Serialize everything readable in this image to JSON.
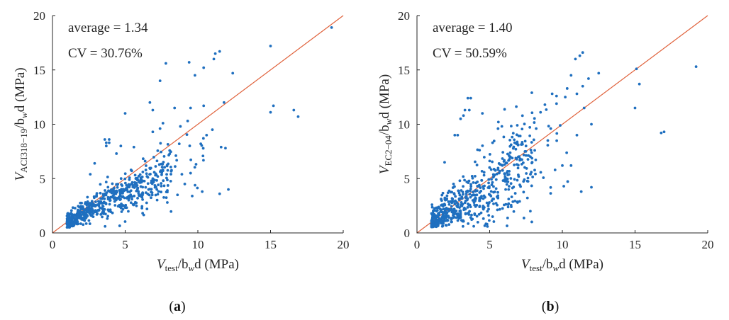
{
  "figure": {
    "caption_open": "(",
    "caption_close": ")"
  },
  "chart_data": [
    {
      "id": "a",
      "type": "scatter",
      "panel_label": "a",
      "title": "",
      "xlabel": "V_test / b_w d (MPa)",
      "ylabel": "V_ACI318–19 / b_w d (MPa)",
      "xlabel_main": "V",
      "xlabel_sub": "test",
      "xlabel_rest": "/b",
      "xlabel_sub2": "w",
      "xlabel_tail": "d (MPa)",
      "ylabel_main": "V",
      "ylabel_sub": "ACI318−19",
      "ylabel_rest": "/b",
      "ylabel_sub2": "w",
      "ylabel_tail": "d (MPa)",
      "xlim": [
        0,
        20
      ],
      "ylim": [
        0,
        20
      ],
      "xticks": [
        0,
        5,
        10,
        15,
        20
      ],
      "yticks": [
        0,
        5,
        10,
        15,
        20
      ],
      "annotations": [
        "average = 1.34",
        "CV = 30.76%"
      ],
      "reference_line": {
        "from": [
          0,
          0
        ],
        "to": [
          20,
          20
        ],
        "color": "#e0623c"
      },
      "point_color": "#1f6fbf",
      "seed": 17,
      "n_cluster": 620,
      "outliers": [
        [
          19.2,
          18.9
        ],
        [
          15.0,
          17.2
        ],
        [
          11.5,
          16.7
        ],
        [
          11.2,
          16.5
        ],
        [
          11.1,
          16.0
        ],
        [
          7.8,
          15.6
        ],
        [
          9.4,
          15.7
        ],
        [
          9.8,
          14.5
        ],
        [
          12.4,
          14.7
        ],
        [
          7.4,
          14.0
        ],
        [
          10.4,
          15.2
        ],
        [
          15.2,
          11.7
        ],
        [
          15.0,
          11.1
        ],
        [
          16.6,
          11.3
        ],
        [
          16.9,
          10.7
        ],
        [
          11.8,
          12.0
        ],
        [
          12.1,
          4.0
        ],
        [
          11.5,
          3.6
        ],
        [
          10.3,
          3.8
        ],
        [
          11.6,
          7.9
        ],
        [
          11.9,
          7.8
        ],
        [
          10.4,
          11.7
        ],
        [
          8.4,
          11.5
        ],
        [
          6.7,
          12.0
        ],
        [
          5.0,
          11.0
        ],
        [
          9.3,
          10.3
        ],
        [
          9.5,
          11.5
        ],
        [
          6.9,
          11.3
        ],
        [
          10.6,
          9.0
        ],
        [
          11.0,
          9.5
        ],
        [
          8.8,
          9.8
        ],
        [
          7.6,
          10.1
        ],
        [
          10.2,
          8.2
        ],
        [
          9.1,
          4.5
        ],
        [
          9.5,
          5.5
        ],
        [
          8.9,
          5.4
        ],
        [
          7.9,
          2.8
        ],
        [
          8.6,
          3.5
        ],
        [
          3.6,
          8.6
        ],
        [
          3.9,
          8.6
        ],
        [
          3.7,
          8.3
        ],
        [
          3.9,
          8.3
        ],
        [
          3.7,
          8.0
        ],
        [
          7.4,
          9.6
        ],
        [
          6.9,
          9.3
        ],
        [
          4.4,
          7.3
        ],
        [
          4.7,
          8.0
        ],
        [
          5.6,
          7.9
        ],
        [
          2.9,
          6.4
        ],
        [
          2.6,
          5.4
        ]
      ]
    },
    {
      "id": "b",
      "type": "scatter",
      "panel_label": "b",
      "title": "",
      "xlabel": "V_test / b_w d (MPa)",
      "ylabel": "V_EC2–04 / b_w d (MPa)",
      "xlabel_main": "V",
      "xlabel_sub": "test",
      "xlabel_rest": "/b",
      "xlabel_sub2": "w",
      "xlabel_tail": "d (MPa)",
      "ylabel_main": "V",
      "ylabel_sub": "EC2−04",
      "ylabel_rest": "/b",
      "ylabel_sub2": "w",
      "ylabel_tail": "d (MPa)",
      "xlim": [
        0,
        20
      ],
      "ylim": [
        0,
        20
      ],
      "xticks": [
        0,
        5,
        10,
        15,
        20
      ],
      "yticks": [
        0,
        5,
        10,
        15,
        20
      ],
      "annotations": [
        "average = 1.40",
        "CV = 50.59%"
      ],
      "reference_line": {
        "from": [
          0,
          0
        ],
        "to": [
          20,
          20
        ],
        "color": "#e0623c"
      },
      "point_color": "#1f6fbf",
      "seed": 91,
      "n_cluster": 640,
      "outliers": [
        [
          19.2,
          15.3
        ],
        [
          15.1,
          15.1
        ],
        [
          15.3,
          13.7
        ],
        [
          15.0,
          11.5
        ],
        [
          16.8,
          9.2
        ],
        [
          17.0,
          9.3
        ],
        [
          11.4,
          16.6
        ],
        [
          11.2,
          16.3
        ],
        [
          10.9,
          16.0
        ],
        [
          12.5,
          14.7
        ],
        [
          10.6,
          14.5
        ],
        [
          11.8,
          14.2
        ],
        [
          11.4,
          13.5
        ],
        [
          11.0,
          12.8
        ],
        [
          10.2,
          12.5
        ],
        [
          9.6,
          12.6
        ],
        [
          9.3,
          12.8
        ],
        [
          7.9,
          12.9
        ],
        [
          8.8,
          11.8
        ],
        [
          9.6,
          11.9
        ],
        [
          8.5,
          11.1
        ],
        [
          11.5,
          11.5
        ],
        [
          12.0,
          10.0
        ],
        [
          11.0,
          9.0
        ],
        [
          10.6,
          6.2
        ],
        [
          10.0,
          6.2
        ],
        [
          11.3,
          3.8
        ],
        [
          12.0,
          4.2
        ],
        [
          10.1,
          4.3
        ],
        [
          7.8,
          2.0
        ],
        [
          3.5,
          12.4
        ],
        [
          3.7,
          12.4
        ],
        [
          3.3,
          11.3
        ],
        [
          3.6,
          11.3
        ],
        [
          3.2,
          10.8
        ],
        [
          3.0,
          10.5
        ],
        [
          4.5,
          11.0
        ],
        [
          2.6,
          9.0
        ],
        [
          2.8,
          9.0
        ],
        [
          5.6,
          10.2
        ],
        [
          6.9,
          9.9
        ],
        [
          8.2,
          9.6
        ],
        [
          9.2,
          9.6
        ],
        [
          9.0,
          8.5
        ],
        [
          9.5,
          5.8
        ],
        [
          8.1,
          7.6
        ],
        [
          7.5,
          8.0
        ],
        [
          6.8,
          7.7
        ],
        [
          5.2,
          8.3
        ],
        [
          1.9,
          6.5
        ]
      ]
    }
  ]
}
